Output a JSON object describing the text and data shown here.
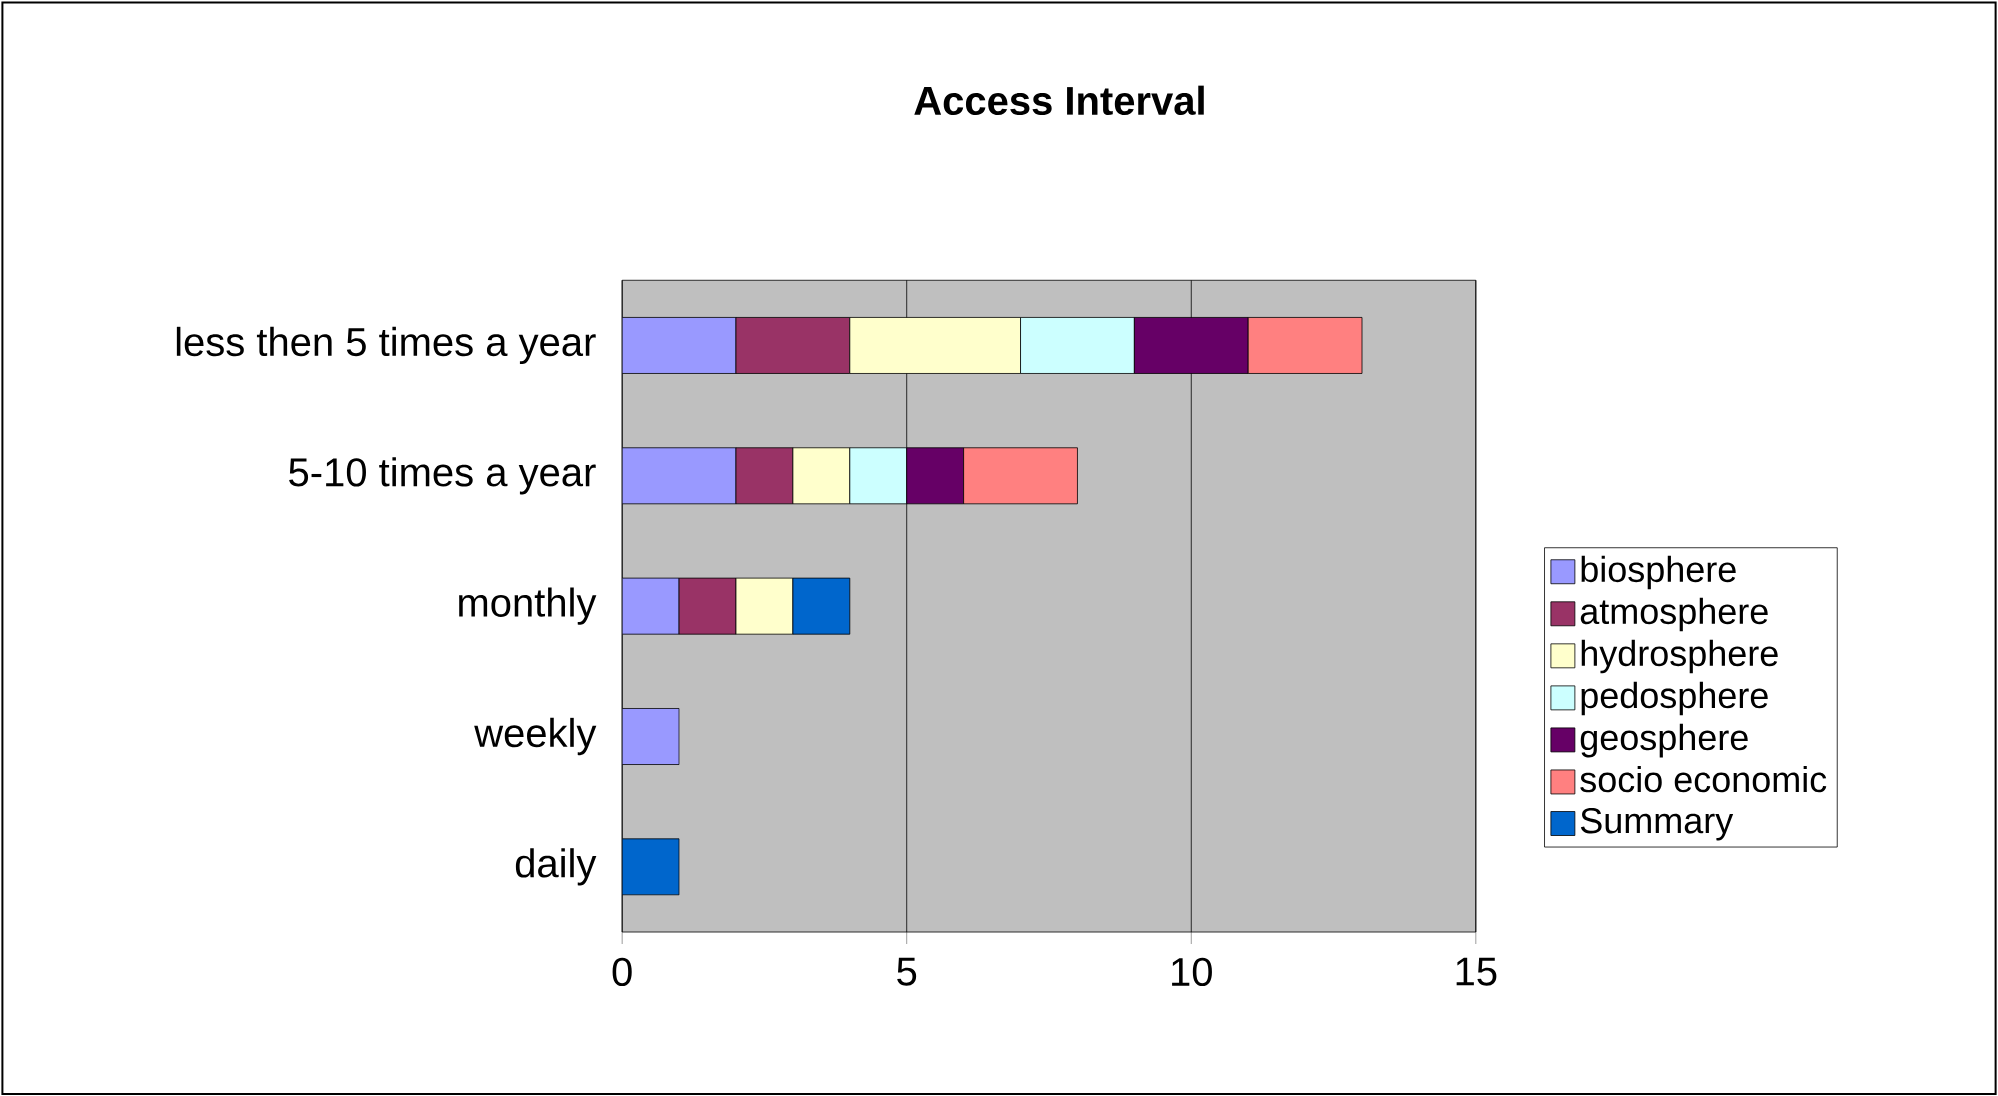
{
  "chart_data": {
    "type": "bar",
    "orientation": "horizontal",
    "stacked": true,
    "title": "Access Interval",
    "categories": [
      "less then 5 times a year",
      "5-10 times a year",
      "monthly",
      "weekly",
      "daily"
    ],
    "series": [
      {
        "name": "biosphere",
        "color": "#9999ff",
        "values": [
          2,
          2,
          1,
          1,
          null
        ]
      },
      {
        "name": "atmosphere",
        "color": "#993366",
        "values": [
          2,
          1,
          1,
          null,
          null
        ]
      },
      {
        "name": "hydrosphere",
        "color": "#ffffcc",
        "values": [
          3,
          1,
          1,
          null,
          null
        ]
      },
      {
        "name": "pedosphere",
        "color": "#ccffff",
        "values": [
          2,
          1,
          null,
          null,
          null
        ]
      },
      {
        "name": "geosphere",
        "color": "#660066",
        "values": [
          2,
          1,
          null,
          null,
          null
        ]
      },
      {
        "name": "socio economic",
        "color": "#ff8080",
        "values": [
          2,
          2,
          null,
          null,
          null
        ]
      },
      {
        "name": "Summary",
        "color": "#0066cc",
        "values": [
          null,
          null,
          1,
          null,
          1
        ]
      }
    ],
    "xlim": [
      0,
      15
    ],
    "xticks": [
      0,
      5,
      10,
      15
    ],
    "grid": "x",
    "legend": "right"
  }
}
